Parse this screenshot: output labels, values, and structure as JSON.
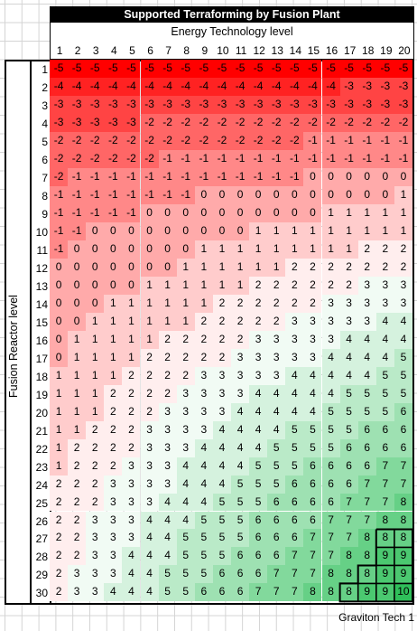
{
  "title": "Supported Terraforming by Fusion Plant",
  "x_axis_label": "Energy Technology level",
  "y_axis_label": "Fusion Reactor level",
  "footer": "Graviton Tech 1",
  "columns": [
    1,
    2,
    3,
    4,
    5,
    6,
    7,
    8,
    9,
    10,
    11,
    12,
    13,
    14,
    15,
    16,
    17,
    18,
    19,
    20
  ],
  "rows": [
    1,
    2,
    3,
    4,
    5,
    6,
    7,
    8,
    9,
    10,
    11,
    12,
    13,
    14,
    15,
    16,
    17,
    18,
    19,
    20,
    21,
    22,
    23,
    24,
    25,
    26,
    27,
    28,
    29,
    30
  ],
  "colors": {
    "low": "#ff0000",
    "mid": "#ffffff",
    "high": "#2fbf5a"
  },
  "chart_data": {
    "type": "heatmap",
    "title": "Supported Terraforming by Fusion Plant",
    "xlabel": "Energy Technology level",
    "ylabel": "Fusion Reactor level",
    "x": [
      1,
      2,
      3,
      4,
      5,
      6,
      7,
      8,
      9,
      10,
      11,
      12,
      13,
      14,
      15,
      16,
      17,
      18,
      19,
      20
    ],
    "y": [
      1,
      2,
      3,
      4,
      5,
      6,
      7,
      8,
      9,
      10,
      11,
      12,
      13,
      14,
      15,
      16,
      17,
      18,
      19,
      20,
      21,
      22,
      23,
      24,
      25,
      26,
      27,
      28,
      29,
      30
    ],
    "values": [
      [
        -5,
        -5,
        -5,
        -5,
        -5,
        -5,
        -5,
        -5,
        -5,
        -5,
        -5,
        -5,
        -5,
        -5,
        -5,
        -5,
        -5,
        -5,
        -5,
        -5
      ],
      [
        -4,
        -4,
        -4,
        -4,
        -4,
        -4,
        -4,
        -4,
        -4,
        -4,
        -4,
        -4,
        -4,
        -4,
        -4,
        -4,
        -3,
        -3,
        -3,
        -3
      ],
      [
        -3,
        -3,
        -3,
        -3,
        -3,
        -3,
        -3,
        -3,
        -3,
        -3,
        -3,
        -3,
        -3,
        -3,
        -3,
        -3,
        -3,
        -3,
        -3,
        -3
      ],
      [
        -3,
        -3,
        -3,
        -3,
        -3,
        -2,
        -2,
        -2,
        -2,
        -2,
        -2,
        -2,
        -2,
        -2,
        -2,
        -2,
        -2,
        -2,
        -2,
        -2
      ],
      [
        -2,
        -2,
        -2,
        -2,
        -2,
        -2,
        -2,
        -2,
        -2,
        -2,
        -2,
        -2,
        -2,
        -2,
        -1,
        -1,
        -1,
        -1,
        -1,
        -1
      ],
      [
        -2,
        -2,
        -2,
        -2,
        -2,
        -2,
        -1,
        -1,
        -1,
        -1,
        -1,
        -1,
        -1,
        -1,
        -1,
        -1,
        -1,
        -1,
        -1,
        -1
      ],
      [
        -2,
        -1,
        -1,
        -1,
        -1,
        -1,
        -1,
        -1,
        -1,
        -1,
        -1,
        -1,
        -1,
        -1,
        0,
        0,
        0,
        0,
        0,
        0
      ],
      [
        -1,
        -1,
        -1,
        -1,
        -1,
        -1,
        -1,
        -1,
        0,
        0,
        0,
        0,
        0,
        0,
        0,
        0,
        0,
        0,
        0,
        1
      ],
      [
        -1,
        -1,
        -1,
        -1,
        -1,
        0,
        0,
        0,
        0,
        0,
        0,
        0,
        0,
        0,
        0,
        1,
        1,
        1,
        1,
        1
      ],
      [
        -1,
        -1,
        0,
        0,
        0,
        0,
        0,
        0,
        0,
        0,
        0,
        1,
        1,
        1,
        1,
        1,
        1,
        1,
        1,
        1
      ],
      [
        -1,
        0,
        0,
        0,
        0,
        0,
        0,
        0,
        1,
        1,
        1,
        1,
        1,
        1,
        1,
        1,
        1,
        2,
        2,
        2
      ],
      [
        0,
        0,
        0,
        0,
        0,
        0,
        0,
        1,
        1,
        1,
        1,
        1,
        1,
        2,
        2,
        2,
        2,
        2,
        2,
        2
      ],
      [
        0,
        0,
        0,
        0,
        0,
        1,
        1,
        1,
        1,
        1,
        1,
        2,
        2,
        2,
        2,
        2,
        2,
        3,
        3,
        3
      ],
      [
        0,
        0,
        0,
        1,
        1,
        1,
        1,
        1,
        1,
        2,
        2,
        2,
        2,
        2,
        2,
        3,
        3,
        3,
        3,
        3
      ],
      [
        0,
        0,
        1,
        1,
        1,
        1,
        1,
        1,
        2,
        2,
        2,
        2,
        2,
        3,
        3,
        3,
        3,
        3,
        4,
        4
      ],
      [
        0,
        1,
        1,
        1,
        1,
        1,
        2,
        2,
        2,
        2,
        2,
        3,
        3,
        3,
        3,
        3,
        4,
        4,
        4,
        4
      ],
      [
        0,
        1,
        1,
        1,
        1,
        2,
        2,
        2,
        2,
        2,
        3,
        3,
        3,
        3,
        3,
        4,
        4,
        4,
        4,
        5
      ],
      [
        1,
        1,
        1,
        1,
        2,
        2,
        2,
        2,
        3,
        3,
        3,
        3,
        3,
        4,
        4,
        4,
        4,
        4,
        5,
        5
      ],
      [
        1,
        1,
        1,
        2,
        2,
        2,
        2,
        3,
        3,
        3,
        3,
        4,
        4,
        4,
        4,
        4,
        5,
        5,
        5,
        5
      ],
      [
        1,
        1,
        1,
        2,
        2,
        2,
        3,
        3,
        3,
        3,
        4,
        4,
        4,
        4,
        4,
        5,
        5,
        5,
        5,
        6
      ],
      [
        1,
        1,
        2,
        2,
        2,
        3,
        3,
        3,
        3,
        4,
        4,
        4,
        4,
        5,
        5,
        5,
        5,
        6,
        6,
        6
      ],
      [
        1,
        2,
        2,
        2,
        2,
        3,
        3,
        3,
        4,
        4,
        4,
        4,
        5,
        5,
        5,
        5,
        6,
        6,
        6,
        6
      ],
      [
        1,
        2,
        2,
        2,
        3,
        3,
        3,
        4,
        4,
        4,
        4,
        5,
        5,
        5,
        6,
        6,
        6,
        6,
        7,
        7
      ],
      [
        2,
        2,
        2,
        3,
        3,
        3,
        3,
        4,
        4,
        4,
        5,
        5,
        5,
        6,
        6,
        6,
        6,
        7,
        7,
        7
      ],
      [
        2,
        2,
        2,
        3,
        3,
        3,
        4,
        4,
        4,
        5,
        5,
        5,
        6,
        6,
        6,
        6,
        7,
        7,
        7,
        8
      ],
      [
        2,
        2,
        3,
        3,
        3,
        4,
        4,
        4,
        5,
        5,
        5,
        6,
        6,
        6,
        6,
        7,
        7,
        7,
        8,
        8
      ],
      [
        2,
        2,
        3,
        3,
        3,
        4,
        4,
        5,
        5,
        5,
        5,
        6,
        6,
        6,
        7,
        7,
        7,
        8,
        8,
        8
      ],
      [
        2,
        2,
        3,
        3,
        4,
        4,
        4,
        5,
        5,
        5,
        6,
        6,
        6,
        7,
        7,
        7,
        8,
        8,
        9,
        9
      ],
      [
        2,
        3,
        3,
        3,
        4,
        4,
        5,
        5,
        5,
        6,
        6,
        6,
        7,
        7,
        7,
        8,
        8,
        8,
        9,
        9
      ],
      [
        2,
        3,
        3,
        4,
        4,
        4,
        5,
        5,
        6,
        6,
        6,
        7,
        7,
        7,
        8,
        8,
        8,
        9,
        9,
        10
      ]
    ],
    "color_scale": [
      "#ff0000",
      "#ffffff",
      "#2fbf5a"
    ]
  }
}
